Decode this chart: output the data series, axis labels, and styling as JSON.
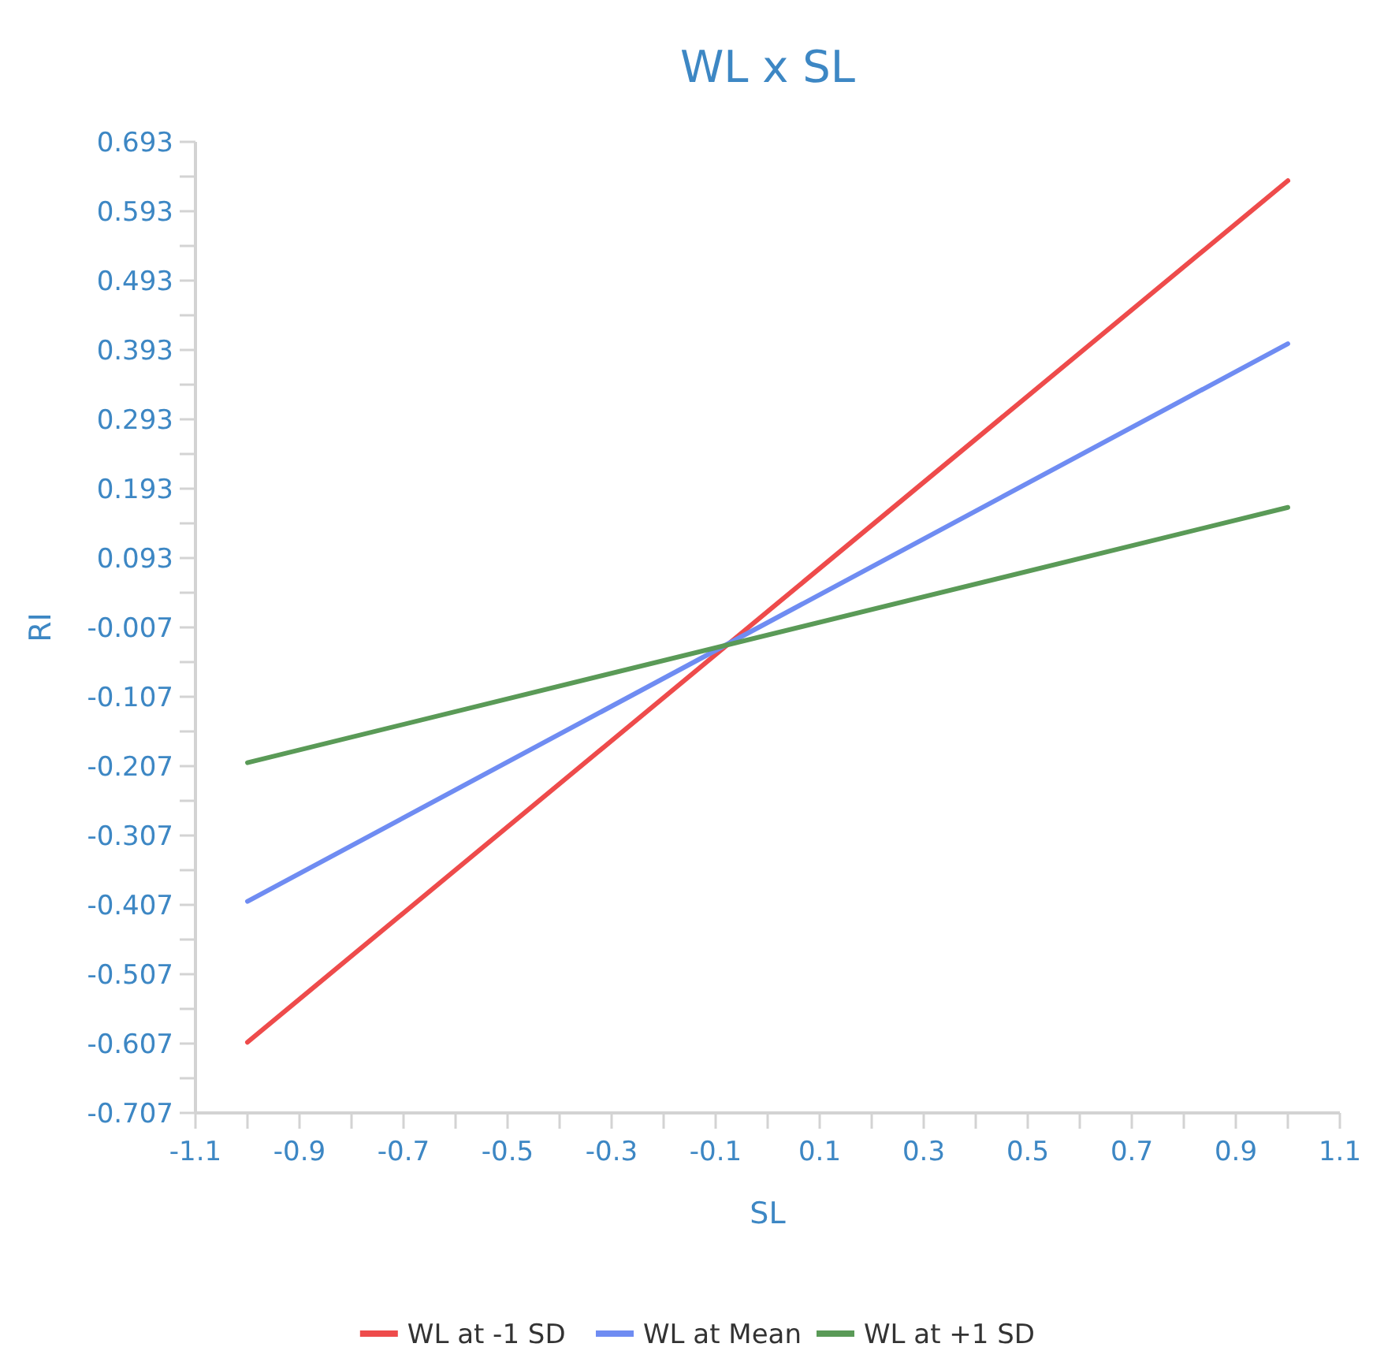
{
  "chart_data": {
    "type": "line",
    "title": "WL x SL",
    "xlabel": "SL",
    "ylabel": "RI",
    "x": [
      -1,
      1
    ],
    "series": [
      {
        "name": "WL at -1 SD",
        "color": "#ee4b4b",
        "values": [
          -0.605,
          0.637
        ]
      },
      {
        "name": "WL at Mean",
        "color": "#6f8cf2",
        "values": [
          -0.402,
          0.402
        ]
      },
      {
        "name": "WL at +1 SD",
        "color": "#5a9a57",
        "values": [
          -0.202,
          0.166
        ]
      }
    ],
    "xlim": [
      -1.1,
      1.1
    ],
    "xticks": [
      -1.1,
      {
        "value": -1,
        "label": null
      },
      -0.9,
      {
        "value": -0.8,
        "label": null
      },
      -0.7,
      {
        "value": -0.6,
        "label": null
      },
      -0.5,
      {
        "value": -0.4,
        "label": null
      },
      -0.3,
      {
        "value": -0.2,
        "label": null
      },
      -0.1,
      {
        "value": 0,
        "label": null
      },
      0.1,
      {
        "value": 0.2,
        "label": null
      },
      0.3,
      {
        "value": 0.4,
        "label": null
      },
      0.5,
      {
        "value": 0.6,
        "label": null
      },
      0.7,
      {
        "value": 0.8,
        "label": null
      },
      0.9,
      {
        "value": 1,
        "label": null
      },
      1.1
    ],
    "ylim": [
      -0.707,
      0.693
    ],
    "yticks": [
      -0.707,
      {
        "value": -0.657,
        "label": null
      },
      -0.607,
      {
        "value": -0.557,
        "label": null
      },
      -0.507,
      {
        "value": -0.457,
        "label": null
      },
      -0.407,
      {
        "value": -0.357,
        "label": null
      },
      -0.307,
      {
        "value": -0.257,
        "label": null
      },
      -0.207,
      {
        "value": -0.157,
        "label": null
      },
      -0.107,
      {
        "value": -0.057,
        "label": null
      },
      -0.007,
      {
        "value": 0.043,
        "label": null
      },
      0.093,
      {
        "value": 0.143,
        "label": null
      },
      0.193,
      {
        "value": 0.243,
        "label": null
      },
      0.293,
      {
        "value": 0.343,
        "label": null
      },
      0.393,
      {
        "value": 0.443,
        "label": null
      },
      0.493,
      {
        "value": 0.543,
        "label": null
      },
      0.593,
      {
        "value": 0.643,
        "label": null
      },
      0.693
    ],
    "grid": false,
    "legend": "bottom",
    "marker": "none",
    "line_style": "solid"
  }
}
